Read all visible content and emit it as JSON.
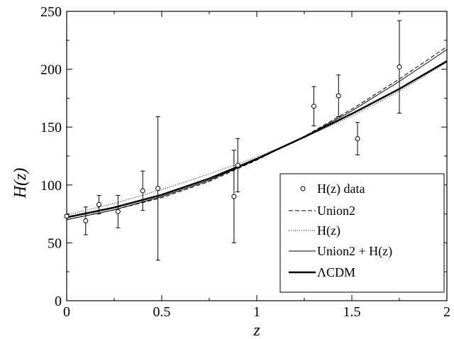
{
  "chart_data": {
    "type": "line",
    "xlabel": "z",
    "ylabel": "H(z)",
    "xlim": [
      0,
      2
    ],
    "ylim": [
      0,
      250
    ],
    "x_ticks": [
      0,
      0.5,
      1,
      1.5,
      2
    ],
    "x_tick_labels": [
      "0",
      "0.5",
      "1",
      "1.5",
      "2"
    ],
    "y_ticks": [
      0,
      50,
      100,
      150,
      200,
      250
    ],
    "y_tick_labels": [
      "0",
      "50",
      "100",
      "150",
      "200",
      "250"
    ],
    "grid": false,
    "legend_position": "bottom-right",
    "data_series": {
      "name": "H(z) data",
      "marker": "open-circle",
      "points": [
        {
          "z": 0.0,
          "H": 73,
          "err": 1
        },
        {
          "z": 0.1,
          "H": 69,
          "err": 12
        },
        {
          "z": 0.17,
          "H": 83,
          "err": 8
        },
        {
          "z": 0.27,
          "H": 77,
          "err": 14
        },
        {
          "z": 0.4,
          "H": 95,
          "err": 17
        },
        {
          "z": 0.48,
          "H": 97,
          "err": 62
        },
        {
          "z": 0.88,
          "H": 90,
          "err": 40
        },
        {
          "z": 0.9,
          "H": 117,
          "err": 23
        },
        {
          "z": 1.3,
          "H": 168,
          "err": 17
        },
        {
          "z": 1.43,
          "H": 177,
          "err": 18
        },
        {
          "z": 1.53,
          "H": 140,
          "err": 14
        },
        {
          "z": 1.75,
          "H": 202,
          "err": 40
        }
      ]
    },
    "curves": [
      {
        "name": "Union2",
        "style": "dashed",
        "color": "#000000",
        "x": [
          0,
          0.25,
          0.5,
          0.75,
          1.0,
          1.25,
          1.5,
          1.75,
          2.0
        ],
        "y": [
          70,
          78.5,
          89,
          103,
          121.5,
          142,
          165.5,
          191.5,
          219.5
        ]
      },
      {
        "name": "H(z)",
        "style": "dotted",
        "color": "#000000",
        "x": [
          0,
          0.25,
          0.5,
          0.75,
          1.0,
          1.25,
          1.5,
          1.75,
          2.0
        ],
        "y": [
          74,
          84,
          96,
          109.5,
          124,
          141,
          159.5,
          181,
          206
        ]
      },
      {
        "name": "Union2 + H(z)",
        "style": "thin-solid",
        "color": "#000000",
        "x": [
          0,
          0.25,
          0.5,
          0.75,
          1.0,
          1.25,
          1.5,
          1.75,
          2.0
        ],
        "y": [
          70,
          78.5,
          90,
          104,
          122,
          141.5,
          164,
          189.5,
          217
        ]
      },
      {
        "name": "ΛCDM",
        "style": "thick-solid",
        "color": "#000000",
        "x": [
          0,
          0.25,
          0.5,
          0.75,
          1.0,
          1.25,
          1.5,
          1.75,
          2.0
        ],
        "y": [
          72,
          80.5,
          91.5,
          105.5,
          122.5,
          141.5,
          161.5,
          183,
          207
        ]
      }
    ],
    "legend": [
      {
        "key": "data",
        "label": "H(z) data"
      },
      {
        "key": "union2",
        "label": "Union2"
      },
      {
        "key": "hz",
        "label": "H(z)"
      },
      {
        "key": "combined",
        "label": "Union2 + H(z)"
      },
      {
        "key": "lcdm",
        "label": "ΛCDM"
      }
    ]
  }
}
